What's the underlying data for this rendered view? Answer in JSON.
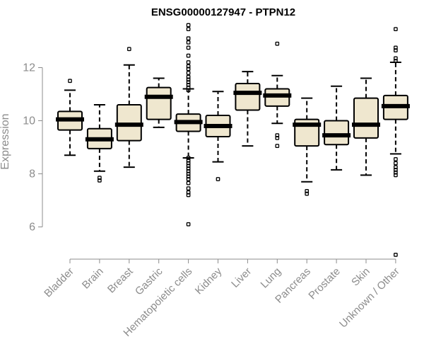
{
  "chart_data": {
    "type": "boxplot",
    "title": "ENSG00000127947 - PTPN12",
    "xlabel": "",
    "ylabel": "Expression",
    "ylim": [
      5,
      13.8
    ],
    "yticks": [
      6,
      8,
      10,
      12
    ],
    "grid": false,
    "legend": "none",
    "categories": [
      "Bladder",
      "Brain",
      "Breast",
      "Gastric",
      "Hematopoietic cells",
      "Kidney",
      "Liver",
      "Lung",
      "Pancreas",
      "Prostate",
      "Skin",
      "Unknown / Other"
    ],
    "series": [
      {
        "whisker_low": [
          8.7,
          8.1,
          8.25,
          9.75,
          8.6,
          8.45,
          9.05,
          9.9,
          7.7,
          8.15,
          7.95,
          8.75
        ],
        "q1": [
          9.65,
          8.95,
          9.25,
          10.05,
          9.6,
          9.4,
          10.4,
          10.55,
          9.05,
          9.1,
          9.35,
          10.05
        ],
        "median": [
          10.05,
          9.3,
          9.85,
          10.9,
          9.95,
          9.8,
          11.05,
          10.95,
          9.85,
          9.45,
          9.85,
          10.55
        ],
        "q3": [
          10.35,
          9.7,
          10.6,
          11.25,
          10.25,
          10.2,
          11.4,
          11.2,
          10.05,
          10.0,
          10.85,
          10.95
        ],
        "whisker_high": [
          11.15,
          10.6,
          12.1,
          11.6,
          11.2,
          11.1,
          11.85,
          11.7,
          10.85,
          11.3,
          11.6,
          12.2
        ],
        "outliers": [
          [
            11.5
          ],
          [
            7.85,
            7.75
          ],
          [
            12.7
          ],
          [],
          [
            13.6,
            13.45,
            13.1,
            12.95,
            12.75,
            12.45,
            12.2,
            12.05,
            11.95,
            11.8,
            11.65,
            11.55,
            11.45,
            11.35,
            11.25,
            11.15,
            8.6,
            8.5,
            8.4,
            8.3,
            8.2,
            8.1,
            8.0,
            7.9,
            7.8,
            7.65,
            7.45,
            7.3,
            7.2,
            6.1
          ],
          [
            7.8
          ],
          [],
          [
            12.9,
            9.45,
            9.35,
            9.05
          ],
          [
            7.35,
            7.25
          ],
          [],
          [],
          [
            13.45,
            12.75,
            12.65,
            12.35,
            12.25,
            8.55,
            8.4,
            8.25,
            8.15,
            8.05,
            7.95,
            4.95
          ]
        ]
      }
    ],
    "colors": {
      "box_fill": "#efe7cf",
      "box_stroke": "#000000",
      "median": "#000000",
      "axis": "#8c8c8c",
      "outlier": "#000000"
    }
  }
}
